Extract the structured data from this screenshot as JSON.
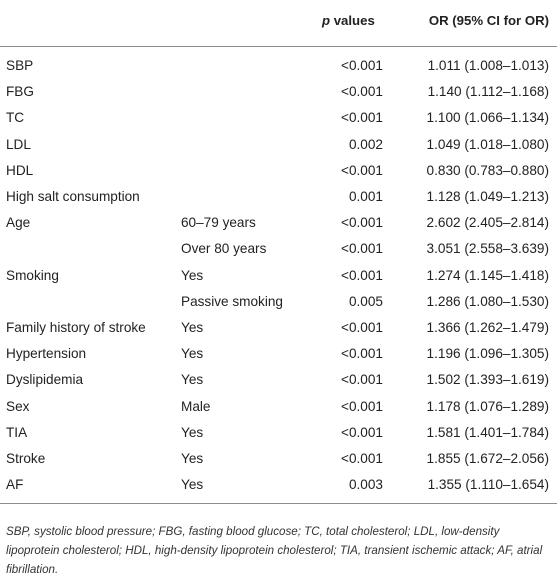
{
  "header": {
    "p_italic": "p",
    "p_rest": " values",
    "or_label": "OR (95% CI for OR)"
  },
  "rows": [
    {
      "variable": "SBP",
      "category": "",
      "p": "<0.001",
      "or": "1.011 (1.008–1.013)"
    },
    {
      "variable": "FBG",
      "category": "",
      "p": "<0.001",
      "or": "1.140 (1.112–1.168)"
    },
    {
      "variable": "TC",
      "category": "",
      "p": "<0.001",
      "or": "1.100 (1.066–1.134)"
    },
    {
      "variable": "LDL",
      "category": "",
      "p": "0.002",
      "or": "1.049 (1.018–1.080)"
    },
    {
      "variable": "HDL",
      "category": "",
      "p": "<0.001",
      "or": "0.830 (0.783–0.880)"
    },
    {
      "variable": "High salt consumption",
      "category": "",
      "p": "0.001",
      "or": "1.128 (1.049–1.213)"
    },
    {
      "variable": "Age",
      "category": "60–79 years",
      "p": "<0.001",
      "or": "2.602 (2.405–2.814)"
    },
    {
      "variable": "",
      "category": "Over 80 years",
      "p": "<0.001",
      "or": "3.051 (2.558–3.639)"
    },
    {
      "variable": "Smoking",
      "category": "Yes",
      "p": "<0.001",
      "or": "1.274 (1.145–1.418)"
    },
    {
      "variable": "",
      "category": "Passive smoking",
      "p": "0.005",
      "or": "1.286 (1.080–1.530)"
    },
    {
      "variable": "Family history of stroke",
      "category": "Yes",
      "p": "<0.001",
      "or": "1.366 (1.262–1.479)"
    },
    {
      "variable": "Hypertension",
      "category": "Yes",
      "p": "<0.001",
      "or": "1.196 (1.096–1.305)"
    },
    {
      "variable": "Dyslipidemia",
      "category": "Yes",
      "p": "<0.001",
      "or": "1.502 (1.393–1.619)"
    },
    {
      "variable": "Sex",
      "category": "Male",
      "p": "<0.001",
      "or": "1.178 (1.076–1.289)"
    },
    {
      "variable": "TIA",
      "category": "Yes",
      "p": "<0.001",
      "or": "1.581 (1.401–1.784)"
    },
    {
      "variable": "Stroke",
      "category": "Yes",
      "p": "<0.001",
      "or": "1.855 (1.672–2.056)"
    },
    {
      "variable": "AF",
      "category": "Yes",
      "p": "0.003",
      "or": "1.355 (1.110–1.654)"
    }
  ],
  "footnote": "SBP, systolic blood pressure; FBG, fasting blood glucose; TC, total cholesterol; LDL, low-density lipoprotein cholesterol; HDL, high-density lipoprotein cholesterol; TIA, transient ischemic attack; AF, atrial fibrillation."
}
